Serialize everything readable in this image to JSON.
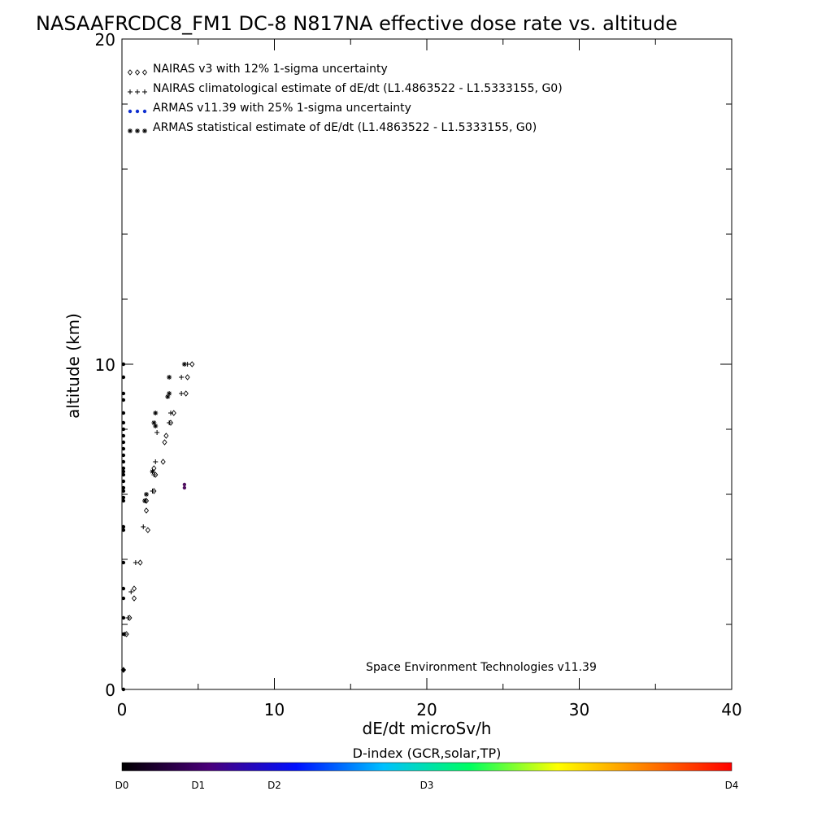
{
  "chart_data": {
    "type": "scatter",
    "title": "NASAAFRCDC8_FM1 DC-8   N817NA effective dose rate vs. altitude",
    "xlabel": "dE/dt microSv/h",
    "ylabel": "altitude (km)",
    "xlim": [
      0,
      40
    ],
    "ylim": [
      0,
      20
    ],
    "x_ticks": [
      0,
      10,
      20,
      30,
      40
    ],
    "y_ticks": [
      0,
      10,
      20
    ],
    "annotation": "Space Environment Technologies v11.39",
    "legend_position": "top-left",
    "legend": [
      {
        "symbol": "◇◇◇",
        "label": "NAIRAS v3 with 12% 1-sigma uncertainty",
        "color": "#000000"
      },
      {
        "symbol": "+++",
        "label": "NAIRAS climatological estimate of dE/dt (L1.4863522 - L1.5333155, G0)",
        "color": "#000000"
      },
      {
        "symbol": "●●●",
        "label": "ARMAS v11.39 with 25% 1-sigma uncertainty",
        "color": "#1030d0"
      },
      {
        "symbol": "✱✱✱",
        "label": "ARMAS statistical estimate of dE/dt (L1.4863522 - L1.5333155, G0)",
        "color": "#000000"
      }
    ],
    "series": [
      {
        "name": "NAIRAS v3 with 12% 1-sigma uncertainty",
        "marker": "diamond",
        "points": [
          [
            4.6,
            10.0
          ],
          [
            4.3,
            9.6
          ],
          [
            4.2,
            9.1
          ],
          [
            3.4,
            8.5
          ],
          [
            3.2,
            8.2
          ],
          [
            2.9,
            7.8
          ],
          [
            2.8,
            7.6
          ],
          [
            2.7,
            7.0
          ],
          [
            2.2,
            6.6
          ],
          [
            2.1,
            6.8
          ],
          [
            2.1,
            6.1
          ],
          [
            1.6,
            5.8
          ],
          [
            1.6,
            5.5
          ],
          [
            1.7,
            4.9
          ],
          [
            1.2,
            3.9
          ],
          [
            0.8,
            3.1
          ],
          [
            0.8,
            2.8
          ],
          [
            0.5,
            2.2
          ],
          [
            0.3,
            1.7
          ],
          [
            0.1,
            0.6
          ]
        ]
      },
      {
        "name": "NAIRAS climatological estimate of dE/dt (L1.4863522 - L1.5333155, G0)",
        "marker": "plus",
        "points": [
          [
            4.3,
            10.0
          ],
          [
            3.9,
            9.6
          ],
          [
            3.9,
            9.1
          ],
          [
            3.2,
            8.5
          ],
          [
            3.1,
            8.2
          ],
          [
            2.3,
            7.9
          ],
          [
            2.2,
            7.0
          ],
          [
            2.1,
            6.6
          ],
          [
            2.0,
            6.1
          ],
          [
            1.5,
            5.8
          ],
          [
            1.4,
            5.0
          ],
          [
            0.9,
            3.9
          ],
          [
            0.6,
            3.0
          ],
          [
            0.4,
            2.2
          ],
          [
            0.2,
            1.7
          ],
          [
            0.1,
            0.6
          ]
        ]
      },
      {
        "name": "ARMAS v11.39 with 25% 1-sigma uncertainty",
        "marker": "dot",
        "points": [
          [
            0.1,
            10.0
          ],
          [
            0.1,
            9.6
          ],
          [
            0.1,
            9.1
          ],
          [
            0.1,
            8.9
          ],
          [
            0.1,
            8.5
          ],
          [
            0.1,
            8.2
          ],
          [
            0.1,
            8.0
          ],
          [
            0.1,
            7.8
          ],
          [
            0.1,
            7.6
          ],
          [
            0.1,
            7.4
          ],
          [
            0.1,
            7.2
          ],
          [
            0.1,
            7.0
          ],
          [
            0.1,
            6.8
          ],
          [
            0.1,
            6.7
          ],
          [
            0.1,
            6.6
          ],
          [
            0.1,
            6.4
          ],
          [
            0.1,
            6.2
          ],
          [
            0.1,
            6.1
          ],
          [
            0.1,
            5.9
          ],
          [
            0.1,
            5.8
          ],
          [
            0.1,
            5.0
          ],
          [
            0.1,
            4.9
          ],
          [
            0.1,
            3.9
          ],
          [
            0.1,
            3.1
          ],
          [
            0.1,
            2.8
          ],
          [
            0.1,
            2.2
          ],
          [
            0.1,
            1.7
          ],
          [
            0.1,
            0.6
          ],
          [
            0.1,
            0.0
          ]
        ]
      },
      {
        "name": "ARMAS statistical estimate of dE/dt (L1.4863522 - L1.5333155, G0)",
        "marker": "asterisk",
        "points": [
          [
            4.1,
            10.0
          ],
          [
            3.1,
            9.6
          ],
          [
            3.1,
            9.1
          ],
          [
            3.0,
            9.0
          ],
          [
            2.2,
            8.5
          ],
          [
            2.1,
            8.2
          ],
          [
            2.2,
            8.1
          ],
          [
            2.0,
            6.7
          ],
          [
            1.6,
            6.0
          ],
          [
            1.5,
            5.8
          ]
        ]
      },
      {
        "name": "",
        "marker": "dot",
        "color": "#501060",
        "points": [
          [
            4.1,
            6.3
          ],
          [
            4.1,
            6.2
          ]
        ]
      }
    ],
    "colorbar": {
      "title": "D-index (GCR,solar,TP)",
      "labels": [
        "D0",
        "D1",
        "D2",
        "D3",
        "D4"
      ],
      "label_fractions": [
        0.0,
        0.125,
        0.25,
        0.5,
        1.0
      ],
      "colors": [
        "#000000",
        "#4a007a",
        "#0010ff",
        "#00c0ff",
        "#00ff60",
        "#ffff00",
        "#ff8000",
        "#ff0000"
      ]
    }
  }
}
